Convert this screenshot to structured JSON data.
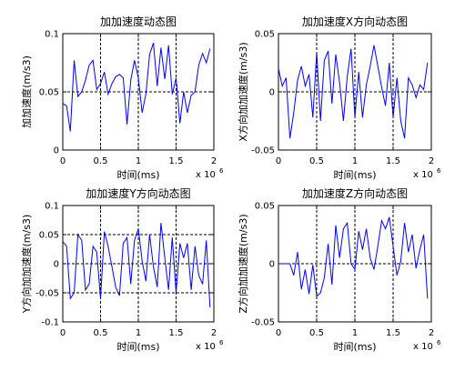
{
  "chart_data": [
    {
      "type": "line",
      "title": "加加速度动态图",
      "xlabel": "时间(ms)",
      "ylabel": "加加速度(m/s3)",
      "x_exponent_base": "x 10",
      "x_exponent_power": "6",
      "xlim": [
        0,
        2
      ],
      "ylim": [
        0,
        0.1
      ],
      "xticks": [
        0,
        0.5,
        1,
        1.5,
        2
      ],
      "xtick_labels": [
        "0",
        "0.5",
        "1",
        "1.5",
        "2"
      ],
      "yticks": [
        0,
        0.05,
        0.1
      ],
      "ytick_labels": [
        "0",
        "0.05",
        "0.1"
      ],
      "dashed_vlines": [
        0.5,
        1,
        1.5
      ],
      "dashed_hlines": [
        0.05
      ],
      "color": "#0000ff",
      "series": [
        {
          "x": [
            0,
            0.05,
            0.1,
            0.15,
            0.2,
            0.25,
            0.3,
            0.35,
            0.4,
            0.45,
            0.5,
            0.55,
            0.6,
            0.65,
            0.7,
            0.75,
            0.8,
            0.85,
            0.9,
            0.95,
            1.0,
            1.05,
            1.1,
            1.15,
            1.2,
            1.25,
            1.3,
            1.35,
            1.4,
            1.45,
            1.5,
            1.55,
            1.6,
            1.65,
            1.7,
            1.75,
            1.8,
            1.85,
            1.9,
            1.95
          ],
          "values": [
            0.04,
            0.038,
            0.016,
            0.077,
            0.046,
            0.05,
            0.06,
            0.073,
            0.077,
            0.052,
            0.057,
            0.067,
            0.048,
            0.057,
            0.063,
            0.065,
            0.062,
            0.022,
            0.06,
            0.077,
            0.062,
            0.032,
            0.048,
            0.082,
            0.092,
            0.055,
            0.088,
            0.061,
            0.09,
            0.048,
            0.062,
            0.023,
            0.05,
            0.032,
            0.047,
            0.05,
            0.073,
            0.083,
            0.075,
            0.087
          ]
        }
      ]
    },
    {
      "type": "line",
      "title": "加加速度X方向动态图",
      "xlabel": "时间(ms)",
      "ylabel": "X方向加加速度(m/s3)",
      "x_exponent_base": "x 10",
      "x_exponent_power": "6",
      "xlim": [
        0,
        2
      ],
      "ylim": [
        -0.05,
        0.05
      ],
      "xticks": [
        0,
        0.5,
        1,
        1.5,
        2
      ],
      "xtick_labels": [
        "0",
        "0.5",
        "1",
        "1.5",
        "2"
      ],
      "yticks": [
        -0.05,
        0,
        0.05
      ],
      "ytick_labels": [
        "-0.05",
        "0",
        "0.05"
      ],
      "dashed_vlines": [
        0.5,
        1,
        1.5
      ],
      "dashed_hlines": [
        0
      ],
      "color": "#0000ff",
      "series": [
        {
          "x": [
            0,
            0.05,
            0.1,
            0.15,
            0.2,
            0.25,
            0.3,
            0.35,
            0.4,
            0.45,
            0.5,
            0.55,
            0.6,
            0.65,
            0.7,
            0.75,
            0.8,
            0.85,
            0.9,
            0.95,
            1.0,
            1.05,
            1.1,
            1.15,
            1.2,
            1.25,
            1.3,
            1.35,
            1.4,
            1.45,
            1.5,
            1.55,
            1.6,
            1.65,
            1.7,
            1.75,
            1.8,
            1.85,
            1.9,
            1.95
          ],
          "values": [
            0.02,
            0.005,
            0.012,
            -0.04,
            -0.018,
            0.01,
            0.022,
            0.005,
            0.015,
            -0.022,
            0.034,
            -0.025,
            0.027,
            0.035,
            -0.01,
            0.032,
            0.008,
            -0.025,
            0.013,
            0.037,
            -0.022,
            0.017,
            -0.022,
            0.006,
            0.022,
            0.04,
            0.022,
            0.004,
            -0.012,
            0.025,
            -0.022,
            0.012,
            -0.025,
            -0.04,
            0.012,
            0.006,
            -0.005,
            0.006,
            0.002,
            0.025
          ]
        }
      ]
    },
    {
      "type": "line",
      "title": "加加速度Y方向动态图",
      "xlabel": "时间(ms)",
      "ylabel": "Y方向加加速度(m/s3)",
      "x_exponent_base": "x 10",
      "x_exponent_power": "6",
      "xlim": [
        0,
        2
      ],
      "ylim": [
        -0.1,
        0.1
      ],
      "xticks": [
        0,
        0.5,
        1,
        1.5,
        2
      ],
      "xtick_labels": [
        "0",
        "0.5",
        "1",
        "1.5",
        "2"
      ],
      "yticks": [
        -0.1,
        -0.05,
        0,
        0.05,
        0.1
      ],
      "ytick_labels": [
        "-0.1",
        "-0.05",
        "0",
        "0.05",
        "0.1"
      ],
      "dashed_vlines": [
        0.5,
        1,
        1.5
      ],
      "dashed_hlines": [
        -0.05,
        0,
        0.05
      ],
      "color": "#0000ff",
      "series": [
        {
          "x": [
            0,
            0.05,
            0.1,
            0.15,
            0.2,
            0.25,
            0.3,
            0.35,
            0.4,
            0.45,
            0.5,
            0.55,
            0.6,
            0.65,
            0.7,
            0.75,
            0.8,
            0.85,
            0.9,
            0.95,
            1.0,
            1.05,
            1.1,
            1.15,
            1.2,
            1.25,
            1.3,
            1.35,
            1.4,
            1.45,
            1.5,
            1.55,
            1.6,
            1.65,
            1.7,
            1.75,
            1.8,
            1.85,
            1.9,
            1.95
          ],
          "values": [
            0.038,
            0.03,
            -0.06,
            -0.05,
            0.05,
            0.04,
            -0.045,
            -0.035,
            0.03,
            0.02,
            -0.06,
            0.055,
            0.03,
            -0.005,
            -0.04,
            -0.055,
            0.035,
            0.045,
            -0.035,
            0.04,
            0.06,
            0.005,
            -0.03,
            0.05,
            -0.005,
            -0.04,
            0.07,
            0.01,
            -0.045,
            0.045,
            -0.05,
            0.035,
            0.01,
            0.035,
            -0.045,
            0.03,
            -0.02,
            -0.035,
            0.04,
            -0.075
          ]
        }
      ]
    },
    {
      "type": "line",
      "title": "加加速度Z方向动态图",
      "xlabel": "时间(ms)",
      "ylabel": "Z方向加加速度(m/s3)",
      "x_exponent_base": "x 10",
      "x_exponent_power": "6",
      "xlim": [
        0,
        2
      ],
      "ylim": [
        -0.05,
        0.05
      ],
      "xticks": [
        0,
        0.5,
        1,
        1.5,
        2
      ],
      "xtick_labels": [
        "0",
        "0.5",
        "1",
        "1.5",
        "2"
      ],
      "yticks": [
        -0.05,
        0,
        0.05
      ],
      "ytick_labels": [
        "-0.05",
        "0",
        "0.05"
      ],
      "dashed_vlines": [
        0.5,
        1,
        1.5
      ],
      "dashed_hlines": [
        0
      ],
      "color": "#0000ff",
      "series": [
        {
          "x": [
            0,
            0.05,
            0.1,
            0.15,
            0.2,
            0.25,
            0.3,
            0.35,
            0.4,
            0.45,
            0.5,
            0.55,
            0.6,
            0.65,
            0.7,
            0.75,
            0.8,
            0.85,
            0.9,
            0.95,
            1.0,
            1.05,
            1.1,
            1.15,
            1.2,
            1.25,
            1.3,
            1.35,
            1.4,
            1.45,
            1.5,
            1.55,
            1.6,
            1.65,
            1.7,
            1.75,
            1.8,
            1.85,
            1.9,
            1.95
          ],
          "values": [
            0,
            0,
            0,
            0,
            -0.01,
            0.01,
            -0.022,
            -0.005,
            -0.026,
            -0.001,
            -0.028,
            -0.025,
            -0.012,
            0.017,
            -0.018,
            0.033,
            0.005,
            0.03,
            0.035,
            0.0,
            -0.005,
            0.028,
            0.012,
            0.03,
            0.005,
            -0.005,
            0.015,
            0.037,
            0.03,
            0.04,
            0.015,
            -0.01,
            0.002,
            0.035,
            0.01,
            0.025,
            -0.004,
            0.012,
            0.025,
            -0.03
          ]
        }
      ]
    }
  ]
}
